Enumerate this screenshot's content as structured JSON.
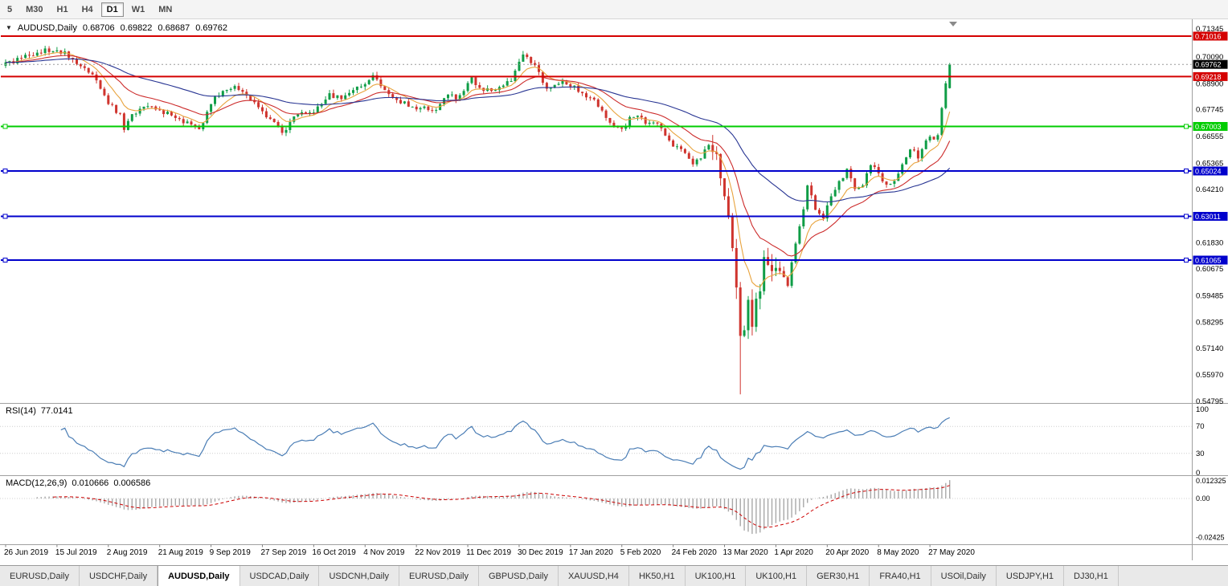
{
  "toolbar": {
    "timeframes": [
      "5",
      "M30",
      "H1",
      "H4",
      "D1",
      "W1",
      "MN"
    ],
    "active": "D1"
  },
  "legend": {
    "symbol_period": "AUDUSD,Daily",
    "open": "0.68706",
    "high": "0.69822",
    "low": "0.68687",
    "close": "0.69762"
  },
  "colors": {
    "candle_up": "#0f9d46",
    "candle_down": "#cf342e",
    "current_price_badge": "#000000",
    "resistance_line": "#d40000",
    "support_line_green": "#00cc00",
    "support_line_blue": "#0000cc",
    "rsi_line": "#4a7db5",
    "macd_histogram": "#a8a8a8",
    "macd_signal": "#cc0000"
  },
  "chart_data": {
    "type": "candlestick",
    "symbol": "AUDUSD",
    "timeframe": "Daily",
    "bar_count": 240,
    "last_bar_ohlc": {
      "open": 0.68706,
      "high": 0.69822,
      "low": 0.68687,
      "close": 0.69762
    },
    "current_price": 0.69762,
    "spike": {
      "index": 186,
      "low": 0.551
    },
    "close_anchors": [
      [
        0,
        0.6985
      ],
      [
        4,
        0.7005
      ],
      [
        8,
        0.7028
      ],
      [
        13,
        0.7038
      ],
      [
        17,
        0.6998
      ],
      [
        20,
        0.696
      ],
      [
        23,
        0.6905
      ],
      [
        26,
        0.68
      ],
      [
        29,
        0.6758
      ],
      [
        30,
        0.6685
      ],
      [
        32,
        0.6755
      ],
      [
        35,
        0.6788
      ],
      [
        39,
        0.6775
      ],
      [
        43,
        0.6738
      ],
      [
        46,
        0.6722
      ],
      [
        48,
        0.67
      ],
      [
        49,
        0.6688
      ],
      [
        52,
        0.68
      ],
      [
        55,
        0.6858
      ],
      [
        58,
        0.688
      ],
      [
        61,
        0.6838
      ],
      [
        63,
        0.6808
      ],
      [
        65,
        0.6768
      ],
      [
        68,
        0.672
      ],
      [
        70,
        0.6672
      ],
      [
        73,
        0.6745
      ],
      [
        76,
        0.6758
      ],
      [
        78,
        0.6762
      ],
      [
        80,
        0.68
      ],
      [
        82,
        0.6848
      ],
      [
        85,
        0.6822
      ],
      [
        88,
        0.6862
      ],
      [
        91,
        0.6888
      ],
      [
        93,
        0.6928
      ],
      [
        96,
        0.6862
      ],
      [
        99,
        0.6818
      ],
      [
        102,
        0.6788
      ],
      [
        105,
        0.6782
      ],
      [
        108,
        0.6772
      ],
      [
        110,
        0.68
      ],
      [
        112,
        0.6842
      ],
      [
        114,
        0.682
      ],
      [
        116,
        0.6858
      ],
      [
        118,
        0.6918
      ],
      [
        120,
        0.6872
      ],
      [
        123,
        0.6858
      ],
      [
        126,
        0.6882
      ],
      [
        128,
        0.6902
      ],
      [
        130,
        0.6988
      ],
      [
        131,
        0.702
      ],
      [
        133,
        0.6982
      ],
      [
        135,
        0.6942
      ],
      [
        137,
        0.6868
      ],
      [
        139,
        0.6885
      ],
      [
        141,
        0.6902
      ],
      [
        143,
        0.6878
      ],
      [
        146,
        0.6848
      ],
      [
        148,
        0.6828
      ],
      [
        150,
        0.6788
      ],
      [
        152,
        0.6738
      ],
      [
        154,
        0.67
      ],
      [
        156,
        0.669
      ],
      [
        158,
        0.6742
      ],
      [
        160,
        0.6748
      ],
      [
        162,
        0.6712
      ],
      [
        164,
        0.6718
      ],
      [
        166,
        0.6692
      ],
      [
        168,
        0.6638
      ],
      [
        170,
        0.6612
      ],
      [
        172,
        0.6582
      ],
      [
        174,
        0.6532
      ],
      [
        176,
        0.6558
      ],
      [
        178,
        0.6618
      ],
      [
        180,
        0.6578
      ],
      [
        181,
        0.647
      ],
      [
        182,
        0.639
      ],
      [
        183,
        0.6298
      ],
      [
        184,
        0.616
      ],
      [
        185,
        0.5985
      ],
      [
        186,
        0.577
      ],
      [
        187,
        0.5795
      ],
      [
        188,
        0.593
      ],
      [
        189,
        0.581
      ],
      [
        190,
        0.5935
      ],
      [
        191,
        0.5968
      ],
      [
        192,
        0.612
      ],
      [
        193,
        0.6085
      ],
      [
        194,
        0.6058
      ],
      [
        195,
        0.6072
      ],
      [
        196,
        0.6058
      ],
      [
        198,
        0.5992
      ],
      [
        200,
        0.618
      ],
      [
        202,
        0.6332
      ],
      [
        203,
        0.6438
      ],
      [
        205,
        0.633
      ],
      [
        207,
        0.6292
      ],
      [
        209,
        0.639
      ],
      [
        211,
        0.6458
      ],
      [
        213,
        0.6512
      ],
      [
        215,
        0.6422
      ],
      [
        217,
        0.6438
      ],
      [
        219,
        0.6528
      ],
      [
        221,
        0.6492
      ],
      [
        223,
        0.6442
      ],
      [
        225,
        0.6458
      ],
      [
        227,
        0.6532
      ],
      [
        229,
        0.6598
      ],
      [
        231,
        0.6558
      ],
      [
        233,
        0.6638
      ],
      [
        234,
        0.6655
      ],
      [
        235,
        0.6642
      ],
      [
        236,
        0.6662
      ],
      [
        237,
        0.6782
      ],
      [
        238,
        0.6892
      ],
      [
        239,
        0.69762
      ]
    ],
    "price_levels": [
      {
        "value": 0.71016,
        "color": "#d40000",
        "width": 2,
        "handles": false,
        "current": false
      },
      {
        "value": 0.69762,
        "color": "#000000",
        "width": 1,
        "handles": false,
        "current": true
      },
      {
        "value": 0.69218,
        "color": "#d40000",
        "width": 2,
        "handles": false,
        "current": false
      },
      {
        "value": 0.67003,
        "color": "#00cc00",
        "width": 2,
        "handles": true,
        "current": false
      },
      {
        "value": 0.65024,
        "color": "#0000cc",
        "width": 2,
        "handles": true,
        "current": false
      },
      {
        "value": 0.63011,
        "color": "#0000cc",
        "width": 2,
        "handles": true,
        "current": false
      },
      {
        "value": 0.61065,
        "color": "#0000cc",
        "width": 2,
        "handles": true,
        "current": false
      }
    ],
    "price_axis_labels": [
      0.71345,
      0.7009,
      0.689,
      0.67745,
      0.66555,
      0.65365,
      0.6421,
      0.6183,
      0.60675,
      0.59485,
      0.58295,
      0.5714,
      0.5597,
      0.54795
    ],
    "x_axis_labels": [
      "26 Jun 2019",
      "15 Jul 2019",
      "2 Aug 2019",
      "21 Aug 2019",
      "9 Sep 2019",
      "27 Sep 2019",
      "16 Oct 2019",
      "4 Nov 2019",
      "22 Nov 2019",
      "11 Dec 2019",
      "30 Dec 2019",
      "17 Jan 2020",
      "5 Feb 2020",
      "24 Feb 2020",
      "13 Mar 2020",
      "1 Apr 2020",
      "20 Apr 2020",
      "8 May 2020",
      "27 May 2020"
    ],
    "x_label_step_bars": 13,
    "indicators": {
      "moving_averages": [
        {
          "period": 8,
          "color": "#e8a33d"
        },
        {
          "period": 20,
          "color": "#cc2a2a"
        },
        {
          "period": 55,
          "color": "#283593"
        }
      ],
      "rsi": {
        "label": "RSI(14)",
        "period": 14,
        "value": "77.0141",
        "axis_labels": [
          100,
          70,
          30,
          0
        ],
        "level_lines": [
          70,
          30
        ]
      },
      "macd": {
        "label": "MACD(12,26,9)",
        "fast": 12,
        "slow": 26,
        "signal": 9,
        "value_main": "0.010666",
        "value_signal": "0.006586",
        "axis_labels": [
          {
            "label": "0.012325",
            "value": 0.012325
          },
          {
            "label": "0.00",
            "value": 0
          },
          {
            "label": "-0.02425",
            "value": -0.02425
          }
        ]
      }
    }
  },
  "tabs": {
    "active_index": 2,
    "items": [
      "EURUSD,Daily",
      "USDCHF,Daily",
      "AUDUSD,Daily",
      "USDCAD,Daily",
      "USDCNH,Daily",
      "EURUSD,Daily",
      "GBPUSD,Daily",
      "XAUUSD,H4",
      "HK50,H1",
      "UK100,H1",
      "UK100,H1",
      "GER30,H1",
      "FRA40,H1",
      "USOil,Daily",
      "USDJPY,H1",
      "DJ30,H1"
    ]
  }
}
